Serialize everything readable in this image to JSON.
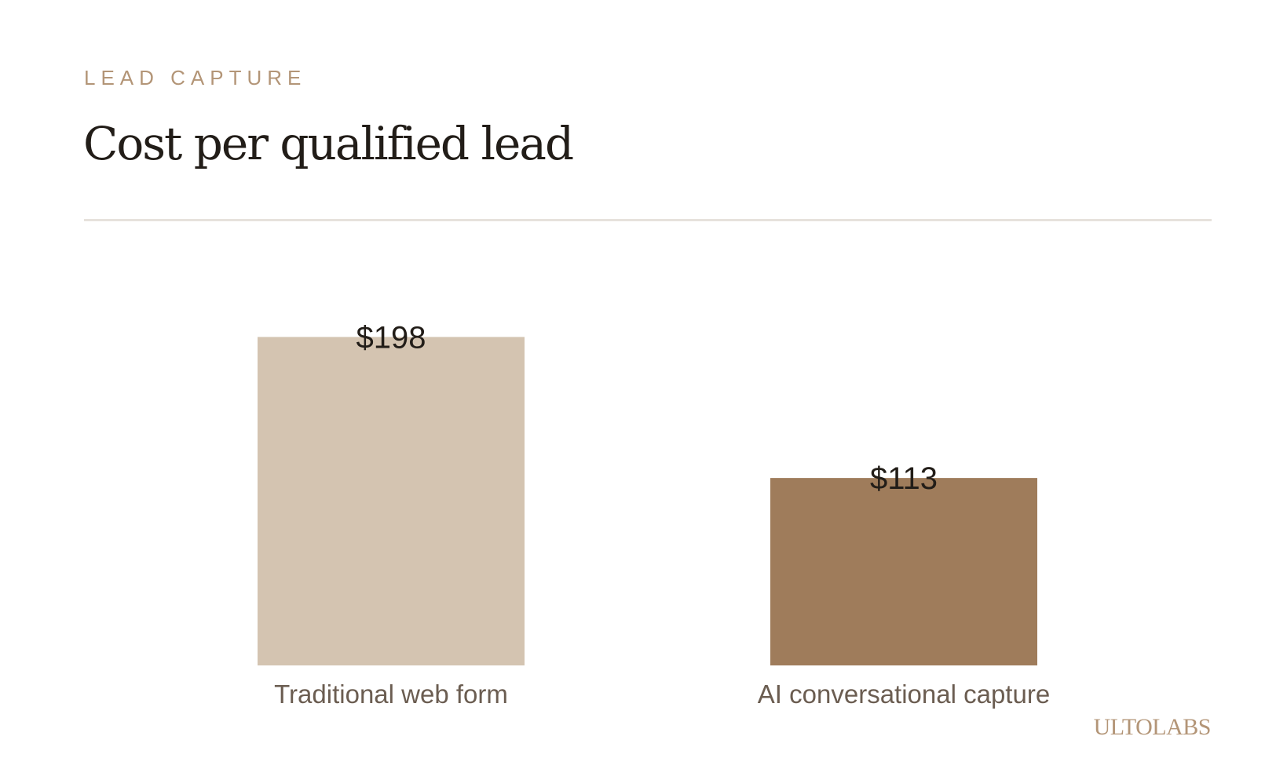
{
  "header": {
    "eyebrow": "LEAD CAPTURE",
    "title": "Cost per qualified lead"
  },
  "brand": {
    "name": "ULTOLABS"
  },
  "colors": {
    "eyebrow": "#b39577",
    "title": "#221d18",
    "divider": "#e7e2dc",
    "category_label": "#6b5d51",
    "brand": "#b39577"
  },
  "chart_data": {
    "type": "bar",
    "title": "Cost per qualified lead",
    "xlabel": "",
    "ylabel": "",
    "ylim": [
      0,
      240
    ],
    "grid": false,
    "categories": [
      "Traditional web form",
      "AI conversational capture"
    ],
    "values": [
      198,
      113
    ],
    "value_labels": [
      "$198",
      "$113"
    ],
    "bar_colors": [
      "#d4c4b1",
      "#9f7c5b"
    ]
  }
}
